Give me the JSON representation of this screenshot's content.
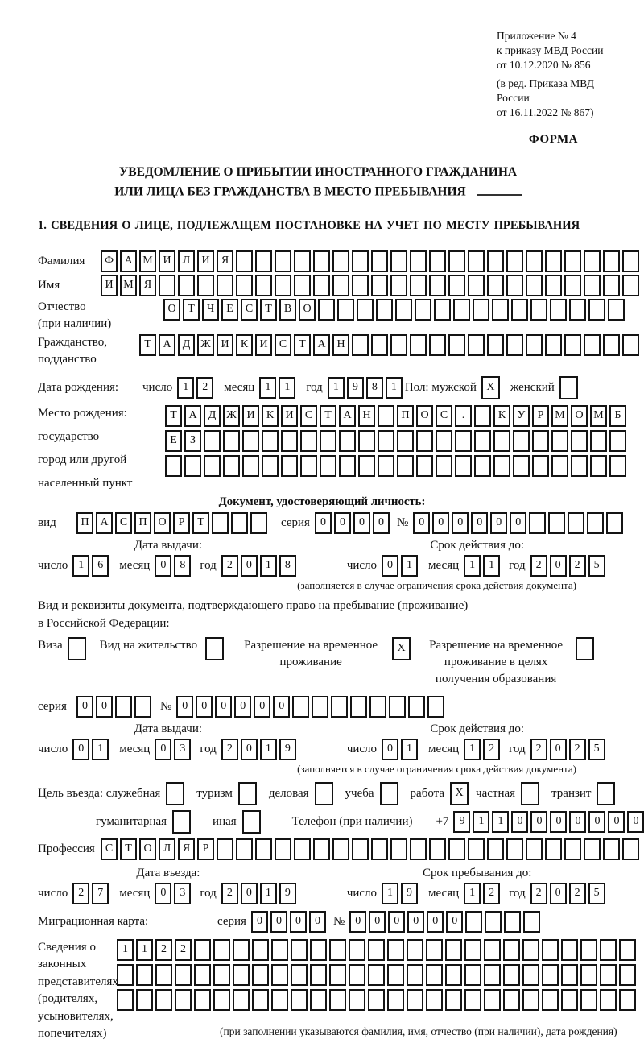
{
  "annex": {
    "line1": "Приложение № 4",
    "line2": "к приказу МВД России",
    "line3": "от 10.12.2020 № 856",
    "line4": "(в ред. Приказа МВД России",
    "line5": "от 16.11.2022 № 867)",
    "forma": "ФОРМА"
  },
  "title": {
    "line1": "УВЕДОМЛЕНИЕ О ПРИБЫТИИ ИНОСТРАННОГО ГРАЖДАНИНА",
    "line2": "ИЛИ ЛИЦА БЕЗ ГРАЖДАНСТВА В МЕСТО ПРЕБЫВАНИЯ"
  },
  "section1_heading": "1. СВЕДЕНИЯ О ЛИЦЕ, ПОДЛЕЖАЩЕМ ПОСТАНОВКЕ НА УЧЕТ ПО МЕСТУ ПРЕБЫВАНИЯ",
  "labels": {
    "surname": "Фамилия",
    "name": "Имя",
    "patronymic": "Отчество",
    "patronymic2": "(при наличии)",
    "citizenship": "Гражданство,",
    "citizenship2": "подданство",
    "birth_date": "Дата рождения:",
    "day": "число",
    "month": "месяц",
    "year": "год",
    "sex_male": "Пол: мужской",
    "sex_female": "женский",
    "birthplace": "Место рождения:",
    "birthplace2": "государство",
    "birthplace3": "город или другой",
    "birthplace4": "населенный пункт",
    "identity_doc": "Документ, удостоверяющий личность:",
    "kind": "вид",
    "series": "серия",
    "number": "№",
    "issue_date": "Дата выдачи:",
    "valid_until": "Срок действия до:",
    "validity_note": "(заполняется в случае ограничения срока действия документа)",
    "permit_line1": "Вид и реквизиты документа, подтверждающего право на пребывание (проживание)",
    "permit_line2": "в Российской Федерации:",
    "visa": "Виза",
    "residence_permit": "Вид на жительство",
    "temp_residence": "Разрешение на временное проживание",
    "temp_residence_edu": "Разрешение на временное проживание в целях получения образования",
    "purpose": "Цель въезда: служебная",
    "tourism": "туризм",
    "business": "деловая",
    "study": "учеба",
    "work": "работа",
    "private": "частная",
    "transit": "транзит",
    "humanitarian": "гуманитарная",
    "other": "иная",
    "phone": "Телефон (при наличии)",
    "phone_prefix": "+7",
    "profession": "Профессия",
    "entry_date": "Дата въезда:",
    "stay_until": "Срок пребывания до:",
    "migration_card": "Миграционная карта:",
    "reps1": "Сведения о",
    "reps2": "законных",
    "reps3": "представителях",
    "reps4": "(родителях,",
    "reps5": "усыновителях,",
    "reps6": "попечителях)",
    "reps_note": "(при заполнении указываются фамилия, имя, отчество (при наличии), дата рождения)"
  },
  "fields": {
    "surname": {
      "value": "ФАМИЛИЯ",
      "count": 28
    },
    "given_name": {
      "value": "ИМЯ",
      "count": 28
    },
    "patronymic": {
      "value": "ОТЧЕСТВО",
      "count": 24
    },
    "citizenship": {
      "value": "ТАДЖИКИСТАН",
      "count": 26
    },
    "birth_day": {
      "value": "12",
      "count": 2
    },
    "birth_month": {
      "value": "11",
      "count": 2
    },
    "birth_year": {
      "value": "1981",
      "count": 4
    },
    "sex_male": {
      "value": "X",
      "count": 1
    },
    "sex_female": {
      "value": "",
      "count": 1
    },
    "birthplace_row1": {
      "value": "ТАДЖИКИСТАН ПОС. КУРМОМБ",
      "count": 24
    },
    "birthplace_row2": {
      "value": "ЕЗ",
      "count": 24
    },
    "birthplace_row3": {
      "value": "",
      "count": 24
    },
    "id_kind": {
      "value": "ПАСПОРТ",
      "count": 10
    },
    "id_series": {
      "value": "0000",
      "count": 4
    },
    "id_number": {
      "value": "000000",
      "count": 11
    },
    "id_issue_day": {
      "value": "16",
      "count": 2
    },
    "id_issue_month": {
      "value": "08",
      "count": 2
    },
    "id_issue_year": {
      "value": "2018",
      "count": 4
    },
    "id_valid_day": {
      "value": "01",
      "count": 2
    },
    "id_valid_month": {
      "value": "11",
      "count": 2
    },
    "id_valid_year": {
      "value": "2025",
      "count": 4
    },
    "cb_visa": {
      "value": "",
      "count": 1
    },
    "cb_residence": {
      "value": "",
      "count": 1
    },
    "cb_temp_residence": {
      "value": "X",
      "count": 1
    },
    "cb_temp_residence_edu": {
      "value": "",
      "count": 1
    },
    "permit_series": {
      "value": "00",
      "count": 4
    },
    "permit_number": {
      "value": "000000",
      "count": 14
    },
    "permit_issue_day": {
      "value": "01",
      "count": 2
    },
    "permit_issue_month": {
      "value": "03",
      "count": 2
    },
    "permit_issue_year": {
      "value": "2019",
      "count": 4
    },
    "permit_valid_day": {
      "value": "01",
      "count": 2
    },
    "permit_valid_month": {
      "value": "12",
      "count": 2
    },
    "permit_valid_year": {
      "value": "2025",
      "count": 4
    },
    "cb_official": {
      "value": "",
      "count": 1
    },
    "cb_tourism": {
      "value": "",
      "count": 1
    },
    "cb_business": {
      "value": "",
      "count": 1
    },
    "cb_study": {
      "value": "",
      "count": 1
    },
    "cb_work": {
      "value": "X",
      "count": 1
    },
    "cb_private": {
      "value": "",
      "count": 1
    },
    "cb_transit": {
      "value": "",
      "count": 1
    },
    "cb_humanitarian": {
      "value": "",
      "count": 1
    },
    "cb_other": {
      "value": "",
      "count": 1
    },
    "phone_digits": {
      "value": "9110000000",
      "count": 11
    },
    "profession": {
      "value": "СТОЛЯР",
      "count": 28
    },
    "entry_day": {
      "value": "27",
      "count": 2
    },
    "entry_month": {
      "value": "03",
      "count": 2
    },
    "entry_year": {
      "value": "2019",
      "count": 4
    },
    "stay_day": {
      "value": "19",
      "count": 2
    },
    "stay_month": {
      "value": "12",
      "count": 2
    },
    "stay_year": {
      "value": "2025",
      "count": 4
    },
    "migcard_series": {
      "value": "0000",
      "count": 4
    },
    "migcard_number": {
      "value": "000000",
      "count": 10
    },
    "reps_row1": {
      "value": "1122",
      "count": 27
    },
    "reps_row2": {
      "value": "",
      "count": 27
    },
    "reps_row3": {
      "value": "",
      "count": 27
    }
  }
}
